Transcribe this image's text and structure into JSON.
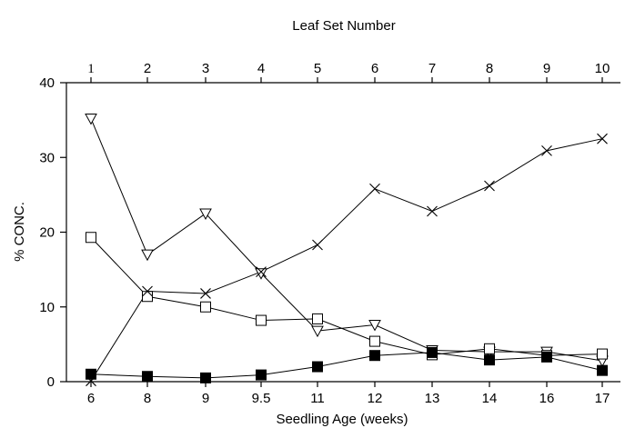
{
  "chart_data": {
    "type": "line",
    "title": "",
    "top_axis_label": "Leaf Set Number",
    "top_ticks": [
      "1",
      "2",
      "3",
      "4",
      "5",
      "6",
      "7",
      "8",
      "9",
      "10"
    ],
    "xlabel": "Seedling Age (weeks)",
    "ylabel": "% CONC.",
    "categories": [
      "6",
      "8",
      "9",
      "9.5",
      "11",
      "12",
      "13",
      "14",
      "16",
      "17"
    ],
    "yticks": [
      0,
      10,
      20,
      30,
      40
    ],
    "ylim": [
      0,
      40
    ],
    "grid": false,
    "legend": "none",
    "series": [
      {
        "marker": "triangle-down-open",
        "values": [
          35.2,
          17.0,
          22.5,
          14.5,
          6.8,
          7.6,
          4.2,
          4.0,
          4.0,
          2.8
        ]
      },
      {
        "marker": "square-open",
        "values": [
          19.3,
          11.4,
          10.0,
          8.2,
          8.4,
          5.4,
          3.6,
          4.4,
          3.5,
          3.7
        ]
      },
      {
        "marker": "x",
        "values": [
          0.1,
          12.1,
          11.8,
          14.7,
          18.3,
          25.8,
          22.8,
          26.2,
          30.9,
          32.5
        ]
      },
      {
        "marker": "square-filled",
        "values": [
          1.0,
          0.7,
          0.5,
          0.9,
          2.0,
          3.5,
          3.9,
          2.9,
          3.3,
          1.5
        ]
      }
    ]
  }
}
